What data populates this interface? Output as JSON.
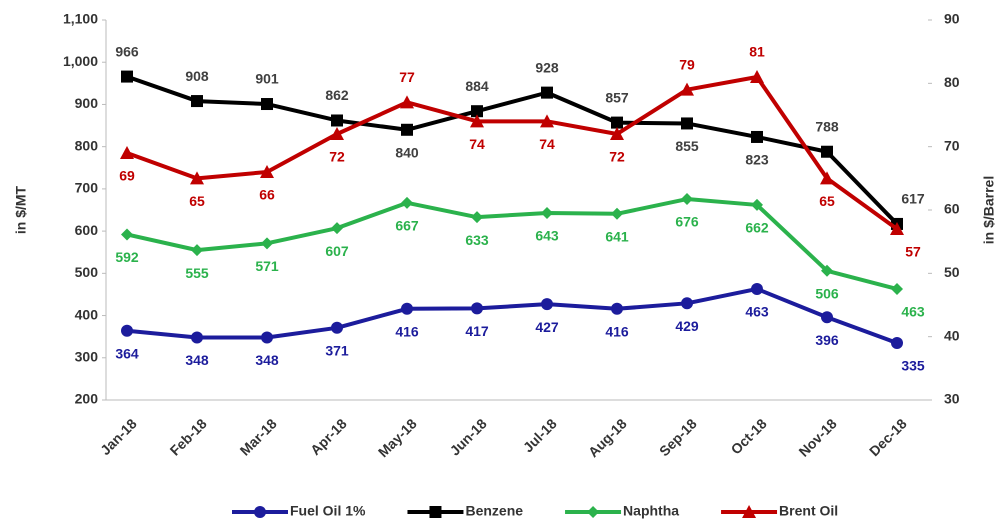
{
  "chart_data": {
    "type": "line",
    "categories": [
      "Jan-18",
      "Feb-18",
      "Mar-18",
      "Apr-18",
      "May-18",
      "Jun-18",
      "Jul-18",
      "Aug-18",
      "Sep-18",
      "Oct-18",
      "Nov-18",
      "Dec-18"
    ],
    "series": [
      {
        "name": "Fuel Oil 1%",
        "color": "#1c1c9c",
        "marker": "circle",
        "values": [
          364,
          348,
          348,
          371,
          416,
          417,
          427,
          416,
          429,
          463,
          396,
          335
        ]
      },
      {
        "name": "Benzene",
        "color": "#000000",
        "marker": "square",
        "values": [
          966,
          908,
          901,
          862,
          840,
          884,
          928,
          857,
          855,
          823,
          788,
          617
        ]
      },
      {
        "name": "Naphtha",
        "color": "#2bb24c",
        "marker": "diamond",
        "values": [
          592,
          555,
          571,
          607,
          667,
          633,
          643,
          641,
          676,
          662,
          506,
          463
        ]
      },
      {
        "name": "Brent Oil",
        "color": "#c00000",
        "marker": "triangle",
        "axis": "y2",
        "values": [
          69,
          65,
          66,
          72,
          77,
          74,
          74,
          72,
          79,
          81,
          65,
          57
        ]
      }
    ],
    "ylabel": "in $/MT",
    "y2label": "in $/Barrel",
    "ylim": [
      200,
      1100
    ],
    "yticks": [
      200,
      300,
      400,
      500,
      600,
      700,
      800,
      900,
      {
        "value": 1000,
        "label": "1,000"
      },
      {
        "value": 1100,
        "label": "1,100"
      }
    ],
    "y2lim": [
      30,
      90
    ],
    "y2ticks": [
      30,
      40,
      50,
      60,
      70,
      80,
      90
    ],
    "grid": false,
    "legend": "bottom"
  }
}
